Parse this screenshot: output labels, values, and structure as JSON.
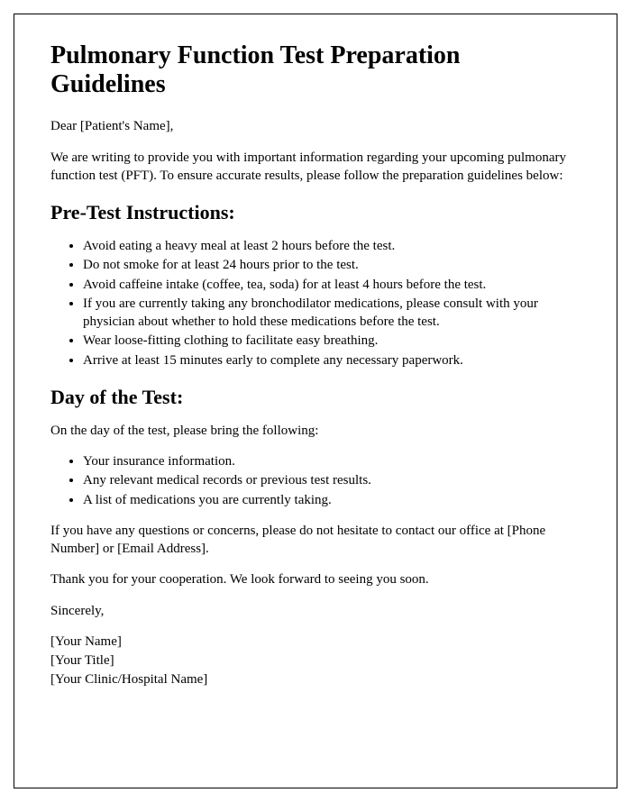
{
  "title": "Pulmonary Function Test Preparation Guidelines",
  "salutation": "Dear [Patient's Name],",
  "intro": "We are writing to provide you with important information regarding your upcoming pulmonary function test (PFT). To ensure accurate results, please follow the preparation guidelines below:",
  "section1": {
    "heading": "Pre-Test Instructions:",
    "items": [
      "Avoid eating a heavy meal at least 2 hours before the test.",
      "Do not smoke for at least 24 hours prior to the test.",
      "Avoid caffeine intake (coffee, tea, soda) for at least 4 hours before the test.",
      "If you are currently taking any bronchodilator medications, please consult with your physician about whether to hold these medications before the test.",
      "Wear loose-fitting clothing to facilitate easy breathing.",
      "Arrive at least 15 minutes early to complete any necessary paperwork."
    ]
  },
  "section2": {
    "heading": "Day of the Test:",
    "intro": "On the day of the test, please bring the following:",
    "items": [
      "Your insurance information.",
      "Any relevant medical records or previous test results.",
      "A list of medications you are currently taking."
    ]
  },
  "contact": "If you have any questions or concerns, please do not hesitate to contact our office at [Phone Number] or [Email Address].",
  "thanks": "Thank you for your cooperation. We look forward to seeing you soon.",
  "closing": "Sincerely,",
  "signature": {
    "name": "[Your Name]",
    "title": "[Your Title]",
    "org": "[Your Clinic/Hospital Name]"
  },
  "colors": {
    "text": "#000000",
    "background": "#ffffff",
    "border": "#000000"
  },
  "typography": {
    "font_family": "Times New Roman",
    "h1_size": 28,
    "h2_size": 22,
    "body_size": 15
  }
}
